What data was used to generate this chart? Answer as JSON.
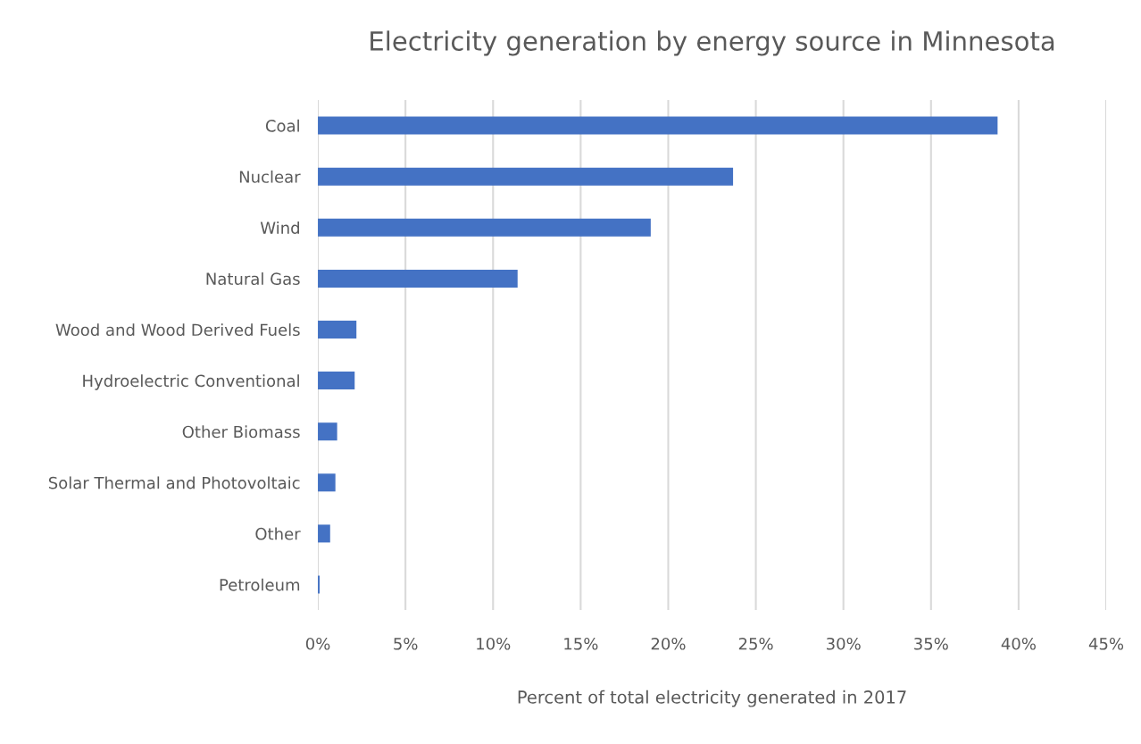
{
  "chart_data": {
    "type": "bar",
    "orientation": "horizontal",
    "title": "Electricity generation by energy source in Minnesota",
    "xlabel": "Percent of total electricity generated in 2017",
    "categories": [
      "Coal",
      "Nuclear",
      "Wind",
      "Natural Gas",
      "Wood and Wood Derived Fuels",
      "Hydroelectric Conventional",
      "Other Biomass",
      "Solar Thermal and Photovoltaic",
      "Other",
      "Petroleum"
    ],
    "values": [
      38.8,
      23.7,
      19.0,
      11.4,
      2.2,
      2.1,
      1.1,
      1.0,
      0.7,
      0.1
    ],
    "color": "#4472c4",
    "xlim": [
      0,
      45
    ],
    "xticks": [
      {
        "value": 0,
        "label": "0%"
      },
      {
        "value": 5,
        "label": "5%"
      },
      {
        "value": 10,
        "label": "10%"
      },
      {
        "value": 15,
        "label": "15%"
      },
      {
        "value": 20,
        "label": "20%"
      },
      {
        "value": 25,
        "label": "25%"
      },
      {
        "value": 30,
        "label": "30%"
      },
      {
        "value": 35,
        "label": "35%"
      },
      {
        "value": 40,
        "label": "40%"
      },
      {
        "value": 45,
        "label": "45%"
      }
    ],
    "grid": "x",
    "legend": false
  }
}
